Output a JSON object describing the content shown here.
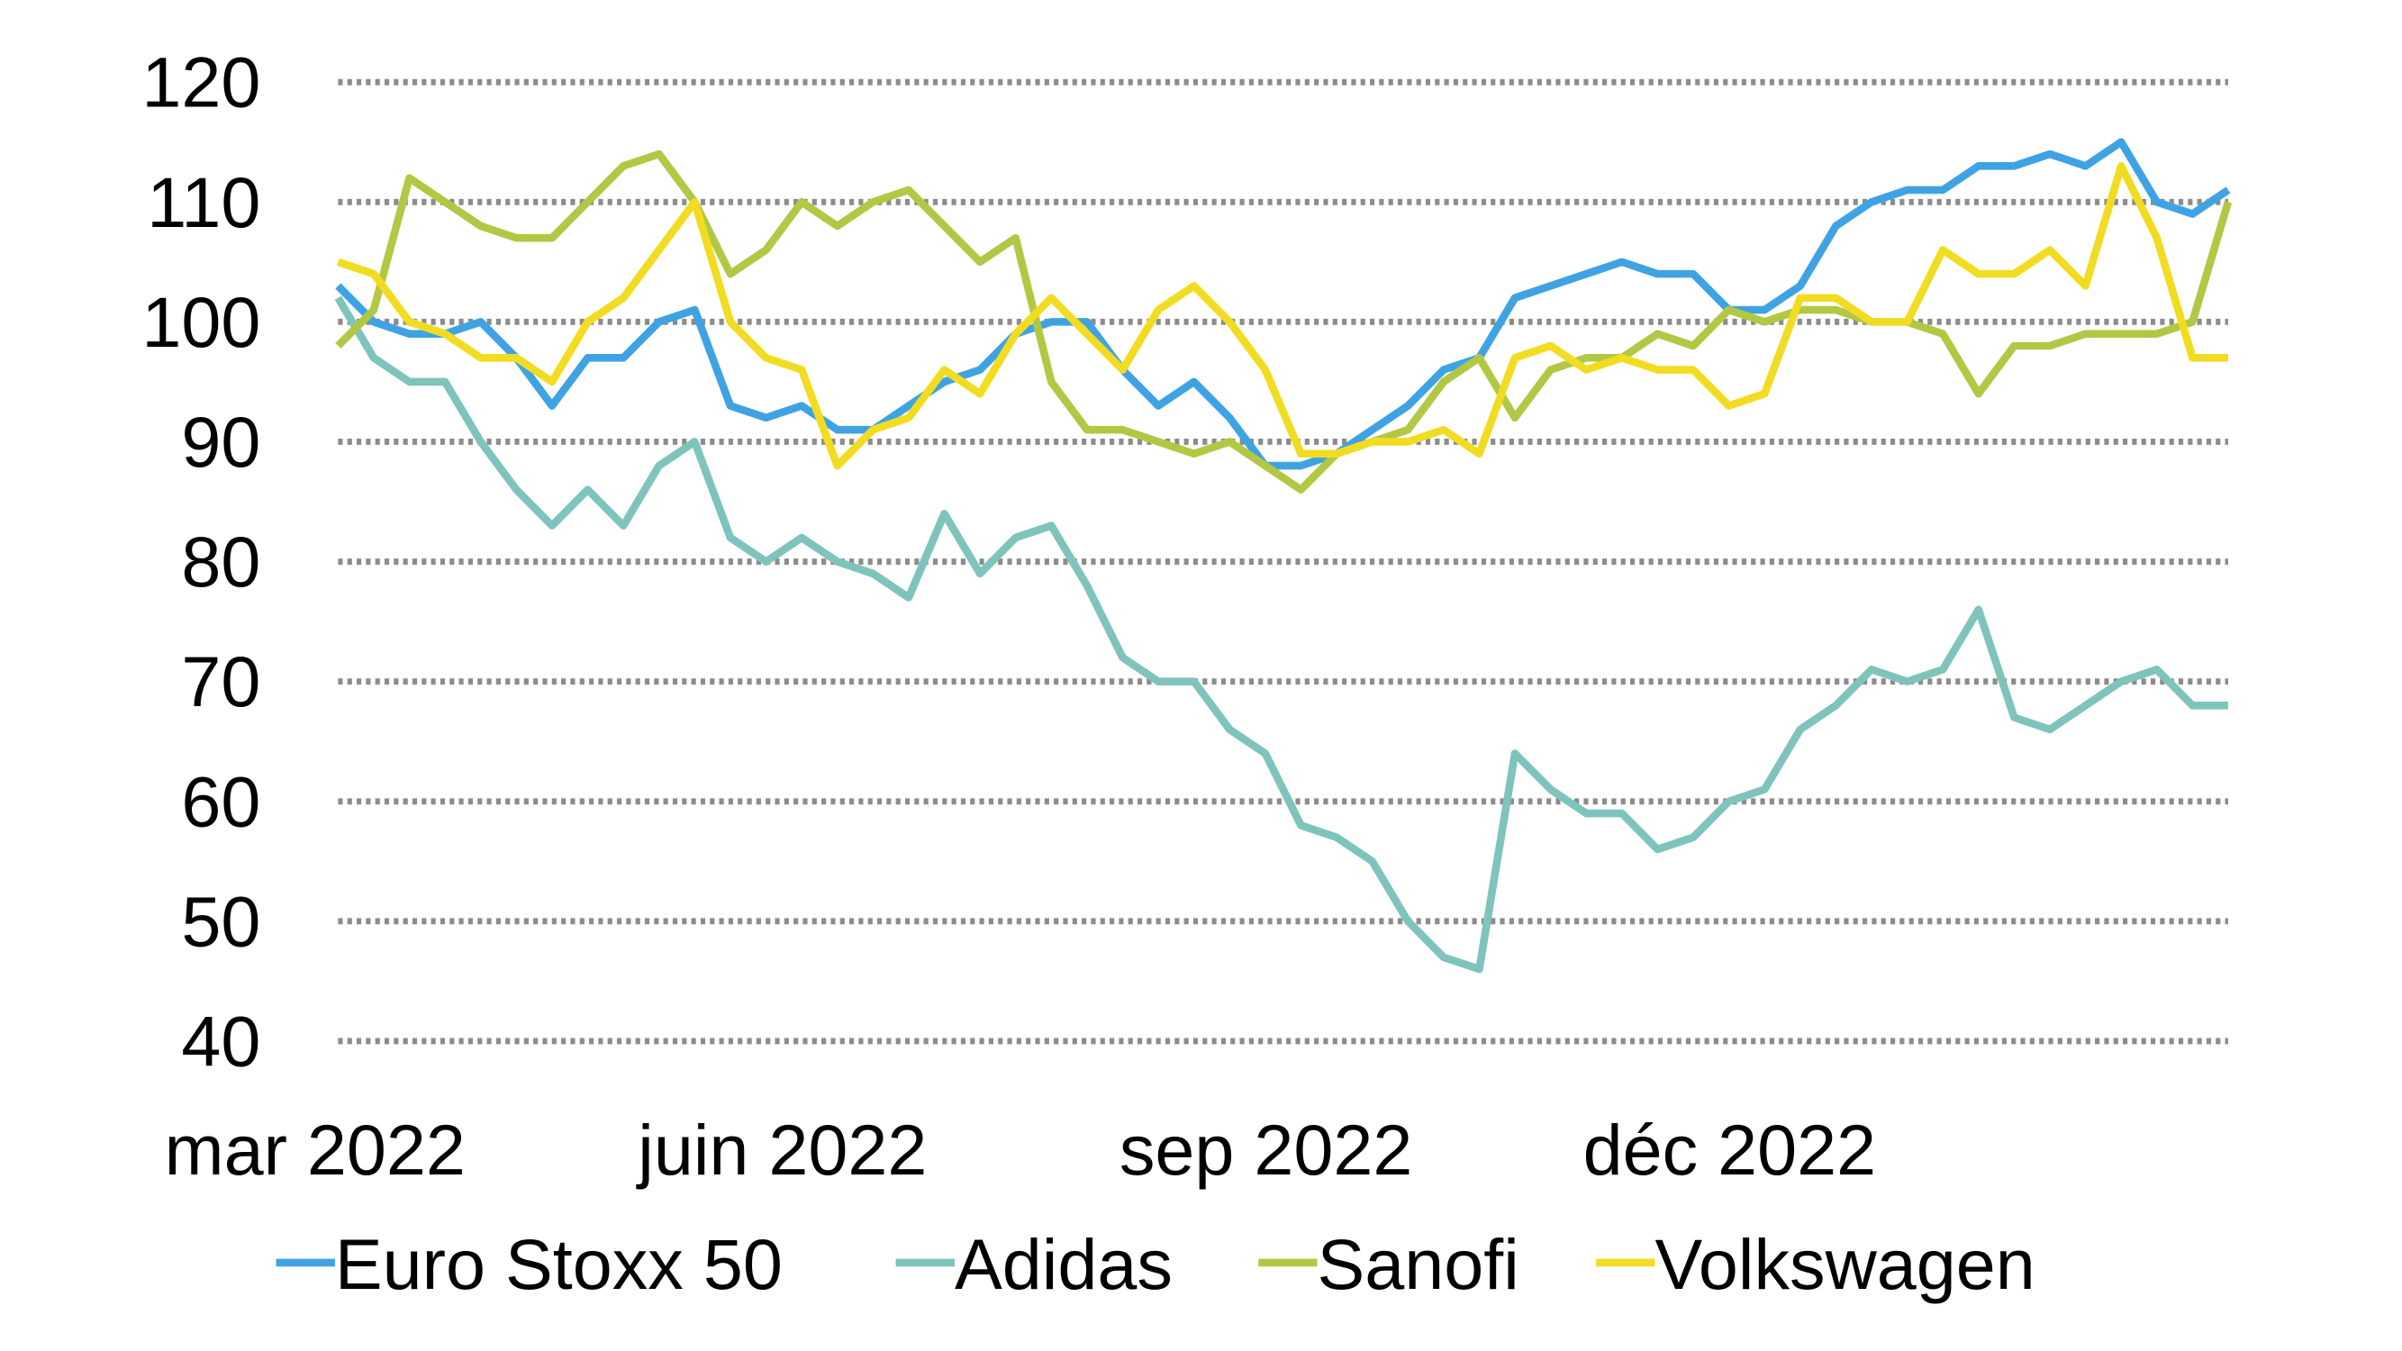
{
  "chart_data": {
    "type": "line",
    "title": "",
    "xlabel": "",
    "ylabel": "",
    "ylim": [
      40,
      120
    ],
    "yticks": [
      120,
      110,
      100,
      90,
      80,
      70,
      60,
      50,
      40
    ],
    "grid": "horizontal-dotted",
    "x_unit": "week index from start of March 2022",
    "xlim": [
      0,
      53
    ],
    "xtick_labels": [
      {
        "label": "mar 2022",
        "x": 0
      },
      {
        "label": "juin 2022",
        "x": 13.1
      },
      {
        "label": "sep 2022",
        "x": 26.6
      },
      {
        "label": "déc 2022",
        "x": 39.6
      }
    ],
    "legend_position": "bottom",
    "series": [
      {
        "name": "Euro Stoxx 50",
        "color": "#3fa3e3",
        "values": [
          103,
          100,
          99,
          99,
          100,
          97,
          93,
          97,
          97,
          100,
          101,
          93,
          92,
          93,
          91,
          91,
          93,
          95,
          96,
          99,
          100,
          100,
          96,
          93,
          95,
          92,
          88,
          88,
          89,
          91,
          93,
          96,
          97,
          102,
          103,
          104,
          105,
          104,
          104,
          101,
          101,
          103,
          108,
          110,
          111,
          111,
          113,
          113,
          114,
          113,
          115,
          110,
          109,
          111
        ]
      },
      {
        "name": "Adidas",
        "color": "#7ec4bc",
        "values": [
          102,
          97,
          95,
          95,
          90,
          86,
          83,
          86,
          83,
          88,
          90,
          82,
          80,
          82,
          80,
          79,
          77,
          84,
          79,
          82,
          83,
          78,
          72,
          70,
          70,
          66,
          64,
          58,
          57,
          55,
          50,
          47,
          46,
          64,
          61,
          59,
          59,
          56,
          57,
          60,
          61,
          66,
          68,
          71,
          70,
          71,
          76,
          67,
          66,
          68,
          70,
          71,
          68,
          68
        ]
      },
      {
        "name": "Sanofi",
        "color": "#b2c844",
        "values": [
          98,
          101,
          112,
          110,
          108,
          107,
          107,
          110,
          113,
          114,
          110,
          104,
          106,
          110,
          108,
          110,
          111,
          108,
          105,
          107,
          95,
          91,
          91,
          90,
          89,
          90,
          88,
          86,
          89,
          90,
          91,
          95,
          97,
          92,
          96,
          97,
          97,
          99,
          98,
          101,
          100,
          101,
          101,
          100,
          100,
          99,
          94,
          98,
          98,
          99,
          99,
          99,
          100,
          110
        ]
      },
      {
        "name": "Volkswagen",
        "color": "#f2dc22",
        "values": [
          105,
          104,
          100,
          99,
          97,
          97,
          95,
          100,
          102,
          106,
          110,
          100,
          97,
          96,
          88,
          91,
          92,
          96,
          94,
          99,
          102,
          99,
          96,
          101,
          103,
          100,
          96,
          89,
          89,
          90,
          90,
          91,
          89,
          97,
          98,
          96,
          97,
          96,
          96,
          93,
          94,
          102,
          102,
          100,
          100,
          106,
          104,
          104,
          106,
          103,
          113,
          107,
          97,
          97
        ]
      }
    ]
  }
}
